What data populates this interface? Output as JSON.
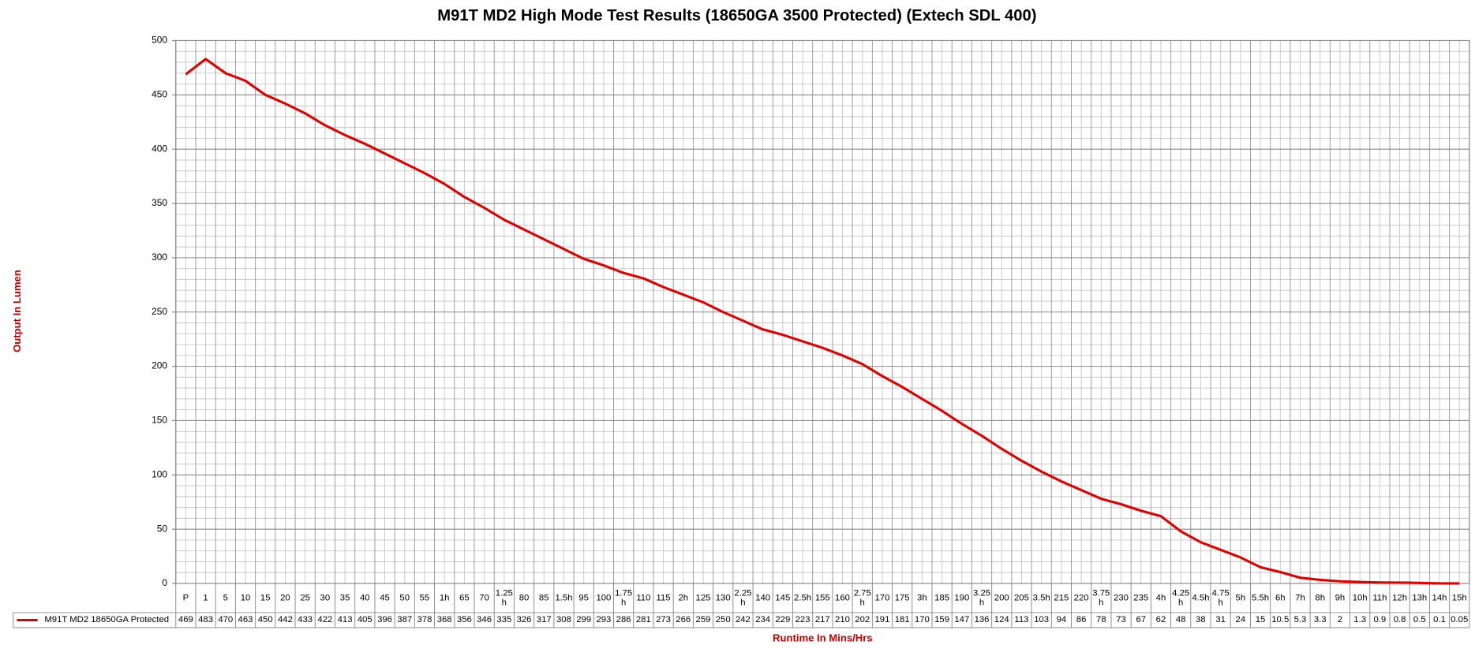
{
  "chart_data": {
    "type": "line",
    "title": "M91T MD2 High Mode Test Results (18650GA 3500 Protected) (Extech SDL 400)",
    "x_label": "Runtime In Mins/Hrs",
    "y_label": "Output In Lumen",
    "categories": [
      "P",
      "1",
      "5",
      "10",
      "15",
      "20",
      "25",
      "30",
      "35",
      "40",
      "45",
      "50",
      "55",
      "1h",
      "65",
      "70",
      "1.25h",
      "80",
      "85",
      "1.5h",
      "95",
      "100",
      "1.75h",
      "110",
      "115",
      "2h",
      "125",
      "130",
      "2.25h",
      "140",
      "145",
      "2.5h",
      "155",
      "160",
      "2.75h",
      "170",
      "175",
      "3h",
      "185",
      "190",
      "3.25h",
      "200",
      "205",
      "3.5h",
      "215",
      "220",
      "3.75h",
      "230",
      "235",
      "4h",
      "4.25h",
      "4.5h",
      "4.75h",
      "5h",
      "5.5h",
      "6h",
      "7h",
      "8h",
      "9h",
      "10h",
      "11h",
      "12h",
      "13h",
      "14h",
      "15h"
    ],
    "series": [
      {
        "name": "M91T MD2 18650GA Protected",
        "color": "#e00000",
        "values": [
          469,
          483,
          470,
          463,
          450,
          442,
          433,
          422,
          413,
          405,
          396,
          387,
          378,
          368,
          356,
          346,
          335,
          326,
          317,
          308,
          299,
          293,
          286,
          281,
          273,
          266,
          259,
          250,
          242,
          234,
          229,
          223,
          217,
          210,
          202,
          191,
          181,
          170,
          159,
          147,
          136,
          124,
          113,
          103,
          94,
          86,
          78,
          73,
          67,
          62,
          48,
          38,
          31,
          24,
          15,
          10.5,
          5.3,
          3.3,
          2,
          1.3,
          0.9,
          0.8,
          0.5,
          0.1,
          0.05
        ]
      }
    ],
    "ylim": [
      0,
      500
    ],
    "yticks": [
      0,
      50,
      100,
      150,
      200,
      250,
      300,
      350,
      400,
      450,
      500
    ],
    "grid": true,
    "data_table": true
  }
}
